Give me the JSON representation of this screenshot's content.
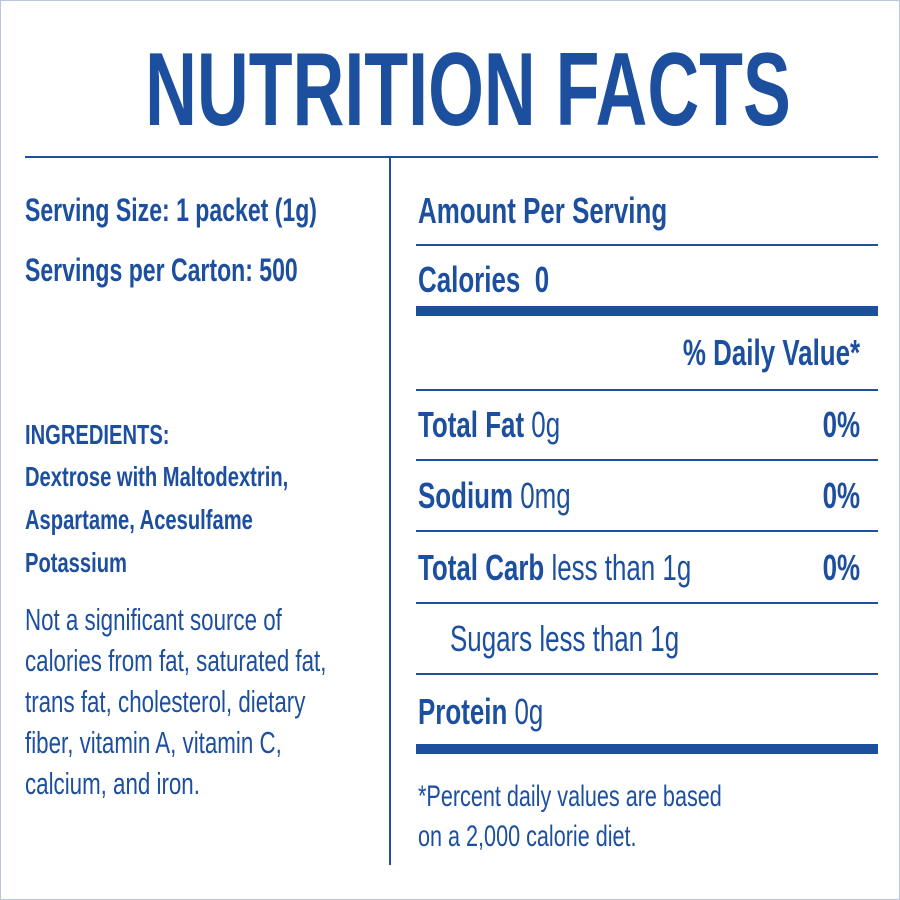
{
  "header": {
    "title": "NUTRITION FACTS"
  },
  "serving": {
    "size": "Serving Size: 1 packet (1g)",
    "per_carton": "Servings per Carton: 500"
  },
  "ingredients": {
    "heading": "INGREDIENTS:",
    "lines": [
      "Dextrose with Maltodextrin,",
      "Aspartame, Acesulfame",
      "Potassium"
    ]
  },
  "note": {
    "lines": [
      "Not a significant source of",
      "calories from fat, saturated fat,",
      "trans fat, cholesterol, dietary",
      "fiber, vitamin A, vitamin C,",
      "calcium, and iron."
    ]
  },
  "facts": {
    "amount_heading": "Amount Per Serving",
    "calories_label": "Calories",
    "calories_value": "0",
    "dv_heading": "% Daily Value*",
    "rows": [
      {
        "name": "Total Fat",
        "amount": "0g",
        "dv": "0%"
      },
      {
        "name": "Sodium",
        "amount": "0mg",
        "dv": "0%"
      },
      {
        "name": "Total Carb",
        "amount": "less than 1g",
        "dv": "0%"
      },
      {
        "name": "Sugars less than 1g"
      },
      {
        "name": "Protein",
        "amount": "0g"
      }
    ],
    "footnote": [
      "*Percent daily values are based",
      "on a 2,000 calorie diet."
    ]
  }
}
